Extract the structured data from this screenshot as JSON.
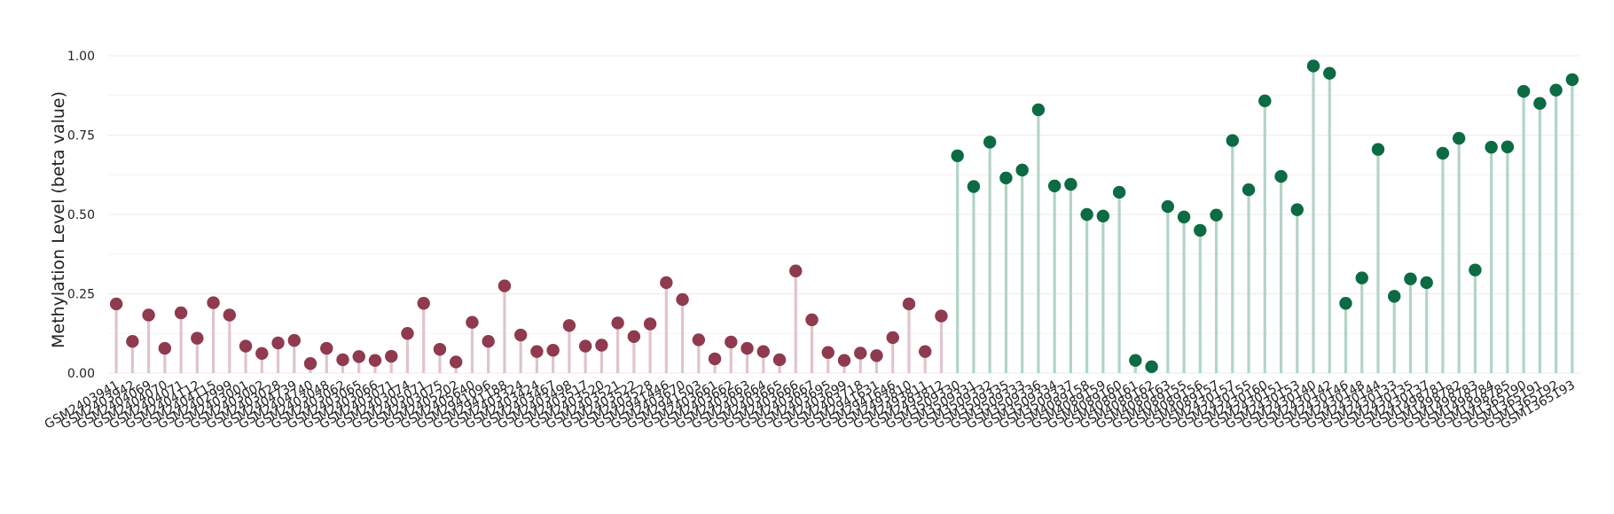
{
  "chart_data": {
    "type": "lollipop",
    "title": "",
    "xlabel": "",
    "ylabel": "Methylation Level (beta value)",
    "ylim": [
      0,
      1.0
    ],
    "yticks": [
      "0.00",
      "0.25",
      "0.50",
      "0.75",
      "1.00"
    ],
    "grid": true,
    "legend": "none",
    "colors": {
      "group1_point": "#8f3a4e",
      "group1_stem": "#e0c4cb",
      "group2_point": "#0c6b43",
      "group2_stem": "#b3d4c6"
    },
    "categories": [
      "GSM2403941",
      "GSM2403942",
      "GSM2404069",
      "GSM2404070",
      "GSM2404071",
      "GSM2404112",
      "GSM2404115",
      "GSM2402999",
      "GSM2403001",
      "GSM2403002",
      "GSM2403028",
      "GSM2404739",
      "GSM2404740",
      "GSM2403048",
      "GSM2403062",
      "GSM2403065",
      "GSM2403066",
      "GSM2403071",
      "GSM2403074",
      "GSM2405071",
      "GSM2403075",
      "GSM2405202",
      "GSM2405640",
      "GSM2941096",
      "GSM2941188",
      "GSM2403324",
      "GSM2403424",
      "GSM2403467",
      "GSM2403498",
      "GSM2403517",
      "GSM2403520",
      "GSM2403521",
      "GSM2403522",
      "GSM2403528",
      "GSM2941446",
      "GSM2403670",
      "GSM2941503",
      "GSM2403661",
      "GSM2403662",
      "GSM2403663",
      "GSM2403664",
      "GSM2403665",
      "GSM2403666",
      "GSM2403667",
      "GSM2403695",
      "GSM2403699",
      "GSM2403718",
      "GSM2941631",
      "GSM2941646",
      "GSM2493810",
      "GSM2493811",
      "GSM2493812",
      "GSM3509330",
      "GSM3509331",
      "GSM3509332",
      "GSM3509335",
      "GSM3509333",
      "GSM3509336",
      "GSM3509334",
      "GSM3509337",
      "GSM4089158",
      "GSM4089159",
      "GSM4089160",
      "GSM4089161",
      "GSM4089162",
      "GSM4089163",
      "GSM4089155",
      "GSM4089156",
      "GSM4089157",
      "GSM2430157",
      "GSM2430155",
      "GSM2430160",
      "GSM2430151",
      "GSM2430153",
      "GSM2430140",
      "GSM2430142",
      "GSM2430146",
      "GSM2430148",
      "GSM2430144",
      "GSM2430133",
      "GSM2430135",
      "GSM2430137",
      "GSM1498781",
      "GSM1498782",
      "GSM1498783",
      "GSM1498784",
      "GSM1498785",
      "GSM1365190",
      "GSM1365191",
      "GSM1365192",
      "GSM1365193"
    ],
    "group_split_index": 52,
    "values": [
      0.218,
      0.1,
      0.183,
      0.078,
      0.19,
      0.11,
      0.222,
      0.183,
      0.085,
      0.062,
      0.095,
      0.103,
      0.03,
      0.078,
      0.042,
      0.052,
      0.04,
      0.053,
      0.125,
      0.22,
      0.075,
      0.035,
      0.16,
      0.1,
      0.275,
      0.12,
      0.068,
      0.072,
      0.15,
      0.085,
      0.088,
      0.158,
      0.115,
      0.155,
      0.285,
      0.232,
      0.105,
      0.045,
      0.098,
      0.078,
      0.068,
      0.042,
      0.322,
      0.168,
      0.065,
      0.04,
      0.063,
      0.055,
      0.112,
      0.218,
      0.068,
      0.18,
      0.685,
      0.588,
      0.728,
      0.615,
      0.64,
      0.83,
      0.59,
      0.595,
      0.5,
      0.495,
      0.57,
      0.04,
      0.02,
      0.525,
      0.492,
      0.45,
      0.498,
      0.733,
      0.578,
      0.858,
      0.62,
      0.515,
      0.968,
      0.945,
      0.22,
      0.3,
      0.705,
      0.242,
      0.297,
      0.285,
      0.693,
      0.74,
      0.325,
      0.712,
      0.713,
      0.888,
      0.85,
      0.892,
      0.925
    ]
  }
}
